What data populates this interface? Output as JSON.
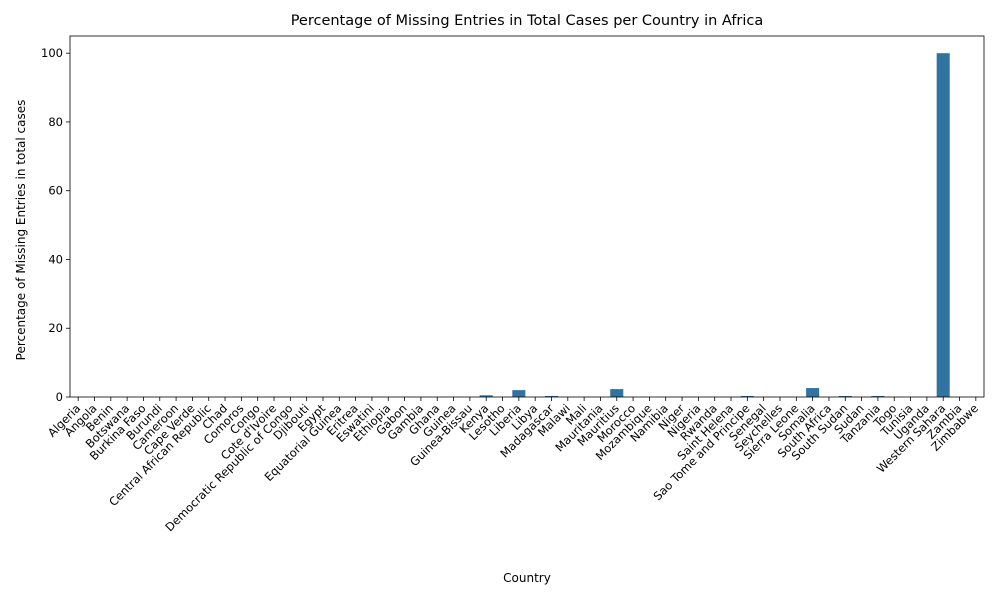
{
  "chart_data": {
    "type": "bar",
    "title": "Percentage of Missing Entries in Total Cases per Country in Africa",
    "xlabel": "Country",
    "ylabel": "Percentage of Missing Entries in total cases",
    "ylim": [
      0,
      105
    ],
    "yticks": [
      0,
      20,
      40,
      60,
      80,
      100
    ],
    "grid": false,
    "bar_color": "#3274a1",
    "categories": [
      "Algeria",
      "Angola",
      "Benin",
      "Botswana",
      "Burkina Faso",
      "Burundi",
      "Cameroon",
      "Cape Verde",
      "Central African Republic",
      "Chad",
      "Comoros",
      "Congo",
      "Cote d'Ivoire",
      "Democratic Republic of Congo",
      "Djibouti",
      "Egypt",
      "Equatorial Guinea",
      "Eritrea",
      "Eswatini",
      "Ethiopia",
      "Gabon",
      "Gambia",
      "Ghana",
      "Guinea",
      "Guinea-Bissau",
      "Kenya",
      "Lesotho",
      "Liberia",
      "Libya",
      "Madagascar",
      "Malawi",
      "Mali",
      "Mauritania",
      "Mauritius",
      "Morocco",
      "Mozambique",
      "Namibia",
      "Niger",
      "Nigeria",
      "Rwanda",
      "Saint Helena",
      "Sao Tome and Principe",
      "Senegal",
      "Seychelles",
      "Sierra Leone",
      "Somalia",
      "South Africa",
      "South Sudan",
      "Sudan",
      "Tanzania",
      "Togo",
      "Tunisia",
      "Uganda",
      "Western Sahara",
      "Zambia",
      "Zimbabwe"
    ],
    "values": [
      0,
      0,
      0,
      0,
      0,
      0,
      0,
      0,
      0,
      0,
      0,
      0,
      0,
      0,
      0,
      0,
      0,
      0,
      0,
      0,
      0,
      0,
      0,
      0,
      0,
      0.5,
      0,
      2.0,
      0,
      0.3,
      0,
      0,
      0,
      2.3,
      0,
      0,
      0,
      0,
      0,
      0,
      0,
      0.3,
      0,
      0,
      0,
      2.6,
      0,
      0.3,
      0,
      0.3,
      0,
      0,
      0,
      100,
      0,
      0
    ]
  }
}
